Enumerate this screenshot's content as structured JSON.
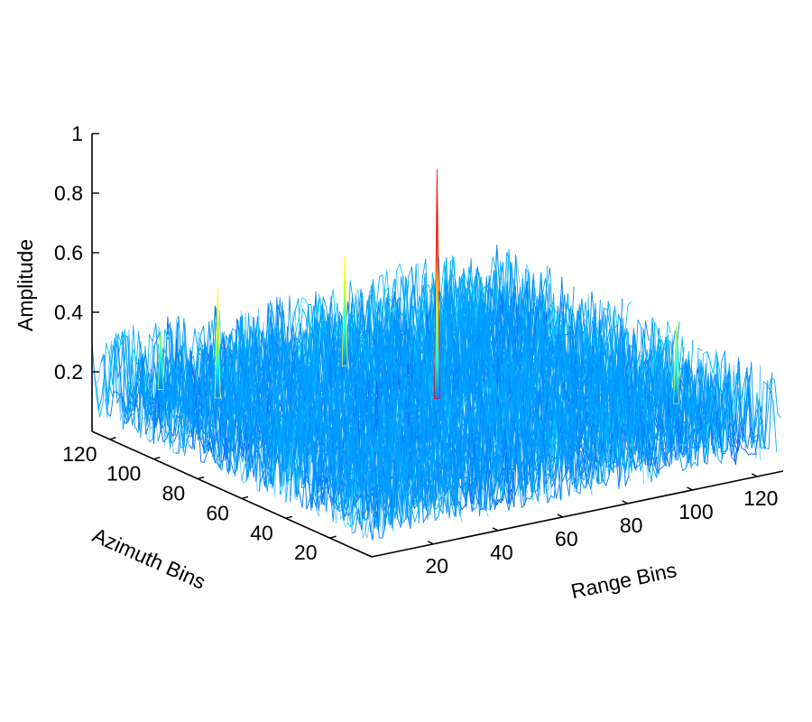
{
  "chart_data": {
    "type": "surface",
    "title": "",
    "xlabel": "Range Bins",
    "ylabel": "Azimuth Bins",
    "zlabel": "Amplitude",
    "x_ticks": [
      "20",
      "40",
      "60",
      "80",
      "100",
      "120"
    ],
    "y_ticks": [
      "20",
      "40",
      "60",
      "80",
      "100",
      "120"
    ],
    "z_ticks": [
      "0.2",
      "0.4",
      "0.6",
      "0.8",
      "1"
    ],
    "xlim": [
      1,
      128
    ],
    "ylim": [
      1,
      128
    ],
    "zlim": [
      0,
      1
    ],
    "grid": false,
    "colormap": "jet",
    "background_noise_range": [
      0.05,
      0.35
    ],
    "peaks": [
      {
        "range_bin": 64,
        "azimuth_bin": 64,
        "amplitude": 0.95
      },
      {
        "range_bin": 18,
        "azimuth_bin": 96,
        "amplitude": 0.55
      },
      {
        "range_bin": 10,
        "azimuth_bin": 110,
        "amplitude": 0.38
      },
      {
        "range_bin": 60,
        "azimuth_bin": 100,
        "amplitude": 0.55
      },
      {
        "range_bin": 112,
        "azimuth_bin": 26,
        "amplitude": 0.44
      }
    ]
  }
}
